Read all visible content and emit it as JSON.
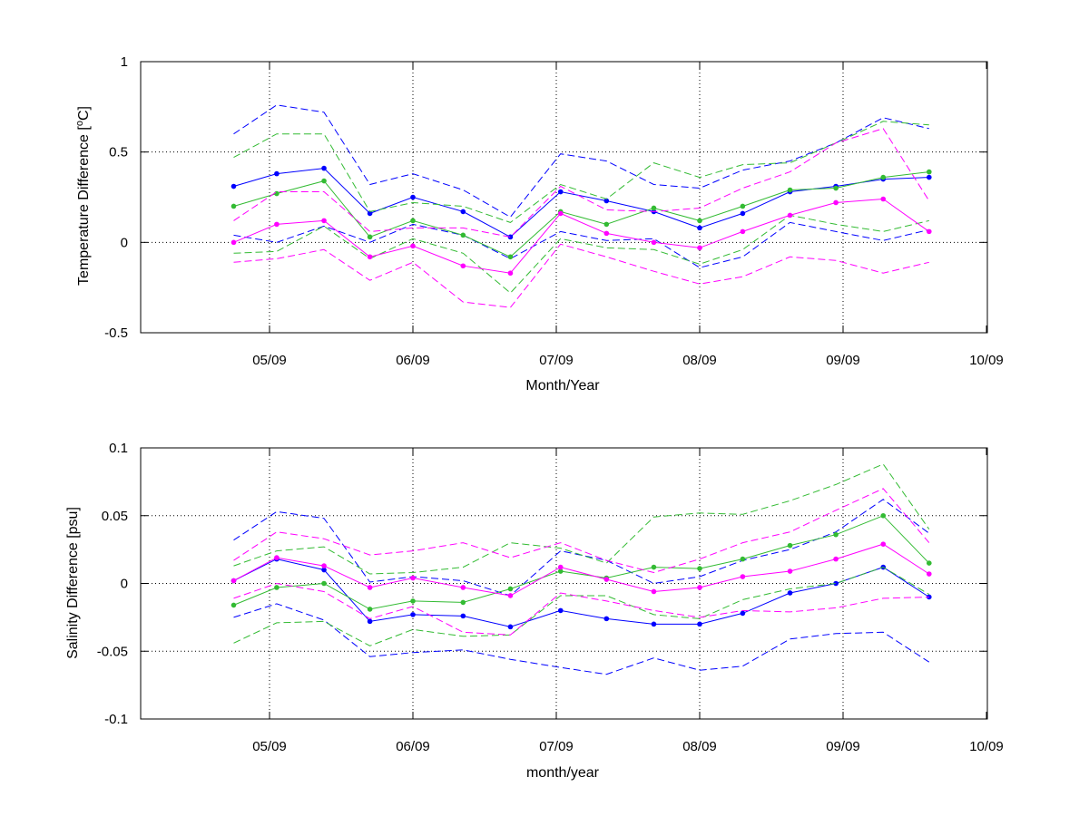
{
  "chart_data": [
    {
      "type": "line",
      "ylabel": "Temperature Difference [°C]",
      "ylabel_main": "Temperature Difference [",
      "ylabel_sup": "o",
      "ylabel_after": "C]",
      "xlabel": "Month/Year",
      "x_ticks": [
        "05/09",
        "06/09",
        "07/09",
        "08/09",
        "09/09",
        "10/09"
      ],
      "y_ticks": [
        "-0.5",
        "0",
        "0.5",
        "1"
      ],
      "ylim": [
        -0.5,
        1
      ],
      "grid": true,
      "x": [
        0.75,
        1.05,
        1.38,
        1.7,
        2.0,
        2.35,
        2.68,
        3.03,
        3.35,
        3.68,
        4.0,
        4.3,
        4.63,
        4.95,
        5.28,
        5.6
      ],
      "series": [
        {
          "color": "#0000ff",
          "style": "solid",
          "marker": true,
          "values": [
            0.31,
            0.38,
            0.41,
            0.16,
            0.25,
            0.17,
            0.03,
            0.28,
            0.23,
            0.17,
            0.08,
            0.16,
            0.28,
            0.31,
            0.35,
            0.36
          ]
        },
        {
          "color": "#0000ff",
          "style": "dashed",
          "values": [
            0.6,
            0.76,
            0.72,
            0.32,
            0.38,
            0.29,
            0.14,
            0.49,
            0.45,
            0.32,
            0.3,
            0.4,
            0.45,
            0.55,
            0.69,
            0.63
          ]
        },
        {
          "color": "#0000ff",
          "style": "dashed",
          "values": [
            0.04,
            0.0,
            0.09,
            0.0,
            0.1,
            0.04,
            -0.09,
            0.06,
            0.01,
            0.02,
            -0.14,
            -0.08,
            0.11,
            0.06,
            0.01,
            0.07
          ]
        },
        {
          "color": "#33bb33",
          "style": "solid",
          "marker": true,
          "values": [
            0.2,
            0.27,
            0.34,
            0.03,
            0.12,
            0.04,
            -0.08,
            0.17,
            0.1,
            0.19,
            0.12,
            0.2,
            0.29,
            0.3,
            0.36,
            0.39
          ]
        },
        {
          "color": "#33bb33",
          "style": "dashed",
          "values": [
            0.47,
            0.6,
            0.6,
            0.17,
            0.22,
            0.2,
            0.11,
            0.32,
            0.24,
            0.44,
            0.36,
            0.43,
            0.44,
            0.55,
            0.67,
            0.65
          ]
        },
        {
          "color": "#33bb33",
          "style": "dashed",
          "values": [
            -0.06,
            -0.05,
            0.09,
            -0.09,
            0.02,
            -0.06,
            -0.28,
            0.02,
            -0.03,
            -0.04,
            -0.12,
            -0.04,
            0.15,
            0.1,
            0.06,
            0.12
          ]
        },
        {
          "color": "#ff00ff",
          "style": "solid",
          "marker": true,
          "values": [
            0.0,
            0.1,
            0.12,
            -0.08,
            -0.02,
            -0.13,
            -0.17,
            0.16,
            0.05,
            0.0,
            -0.03,
            0.06,
            0.15,
            0.22,
            0.24,
            0.06
          ]
        },
        {
          "color": "#ff00ff",
          "style": "dashed",
          "values": [
            0.12,
            0.28,
            0.28,
            0.06,
            0.08,
            0.08,
            0.03,
            0.31,
            0.18,
            0.17,
            0.19,
            0.3,
            0.39,
            0.55,
            0.63,
            0.23
          ]
        },
        {
          "color": "#ff00ff",
          "style": "dashed",
          "values": [
            -0.11,
            -0.09,
            -0.04,
            -0.21,
            -0.11,
            -0.33,
            -0.36,
            -0.01,
            -0.08,
            -0.16,
            -0.23,
            -0.19,
            -0.08,
            -0.1,
            -0.17,
            -0.11
          ]
        }
      ]
    },
    {
      "type": "line",
      "ylabel": "Salinity Difference [psu]",
      "xlabel": "month/year",
      "x_ticks": [
        "05/09",
        "06/09",
        "07/09",
        "08/09",
        "09/09",
        "10/09"
      ],
      "y_ticks": [
        "-0.1",
        "-0.05",
        "0",
        "0.05",
        "0.1"
      ],
      "ylim": [
        -0.1,
        0.1
      ],
      "grid": true,
      "x": [
        0.75,
        1.05,
        1.38,
        1.7,
        2.0,
        2.35,
        2.68,
        3.03,
        3.35,
        3.68,
        4.0,
        4.3,
        4.63,
        4.95,
        5.28,
        5.6
      ],
      "series": [
        {
          "color": "#0000ff",
          "style": "solid",
          "marker": true,
          "values": [
            0.002,
            0.018,
            0.01,
            -0.028,
            -0.023,
            -0.024,
            -0.032,
            -0.02,
            -0.026,
            -0.03,
            -0.03,
            -0.022,
            -0.007,
            0.0,
            0.012,
            -0.01
          ]
        },
        {
          "color": "#0000ff",
          "style": "dashed",
          "values": [
            0.032,
            0.053,
            0.048,
            0.001,
            0.005,
            0.002,
            -0.009,
            0.024,
            0.017,
            0.0,
            0.005,
            0.017,
            0.025,
            0.038,
            0.062,
            0.037
          ]
        },
        {
          "color": "#0000ff",
          "style": "dashed",
          "values": [
            -0.025,
            -0.015,
            -0.027,
            -0.054,
            -0.051,
            -0.049,
            -0.056,
            -0.062,
            -0.067,
            -0.055,
            -0.064,
            -0.061,
            -0.041,
            -0.037,
            -0.036,
            -0.058
          ]
        },
        {
          "color": "#33bb33",
          "style": "solid",
          "marker": true,
          "values": [
            -0.016,
            -0.003,
            0.0,
            -0.019,
            -0.013,
            -0.014,
            -0.004,
            0.009,
            0.004,
            0.012,
            0.011,
            0.018,
            0.028,
            0.036,
            0.05,
            0.015
          ]
        },
        {
          "color": "#33bb33",
          "style": "dashed",
          "values": [
            0.013,
            0.024,
            0.027,
            0.007,
            0.008,
            0.012,
            0.03,
            0.026,
            0.015,
            0.049,
            0.052,
            0.051,
            0.061,
            0.073,
            0.088,
            0.04
          ]
        },
        {
          "color": "#33bb33",
          "style": "dashed",
          "values": [
            -0.044,
            -0.029,
            -0.028,
            -0.046,
            -0.034,
            -0.039,
            -0.038,
            -0.009,
            -0.009,
            -0.023,
            -0.026,
            -0.012,
            -0.004,
            0.0,
            0.012,
            -0.008
          ]
        },
        {
          "color": "#ff00ff",
          "style": "solid",
          "marker": true,
          "values": [
            0.002,
            0.019,
            0.013,
            -0.003,
            0.004,
            -0.003,
            -0.009,
            0.012,
            0.003,
            -0.006,
            -0.003,
            0.005,
            0.009,
            0.018,
            0.029,
            0.007
          ]
        },
        {
          "color": "#ff00ff",
          "style": "dashed",
          "values": [
            0.017,
            0.038,
            0.033,
            0.021,
            0.024,
            0.03,
            0.019,
            0.03,
            0.017,
            0.008,
            0.018,
            0.03,
            0.038,
            0.054,
            0.07,
            0.03
          ]
        },
        {
          "color": "#ff00ff",
          "style": "dashed",
          "values": [
            -0.011,
            0.0,
            -0.006,
            -0.026,
            -0.017,
            -0.036,
            -0.038,
            -0.007,
            -0.013,
            -0.02,
            -0.025,
            -0.02,
            -0.021,
            -0.018,
            -0.011,
            -0.01
          ]
        }
      ]
    }
  ]
}
